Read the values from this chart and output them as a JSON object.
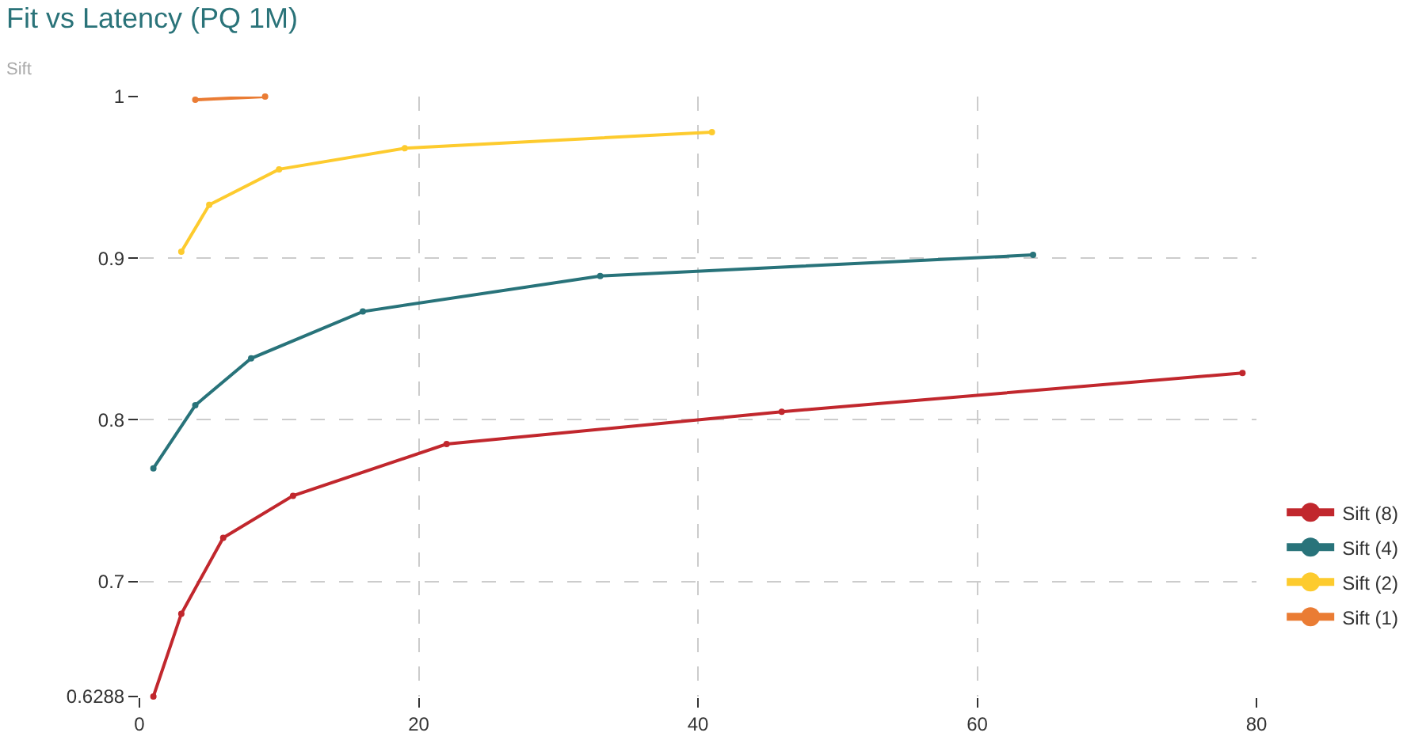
{
  "chart_data": {
    "type": "line",
    "title": "Fit vs Latency (PQ 1M)",
    "subtitle": "Sift",
    "xlim": [
      0,
      80
    ],
    "xticks": [
      0,
      20,
      40,
      60,
      80
    ],
    "ylim": [
      0.6288,
      1
    ],
    "yticks": [
      0.6288,
      0.7,
      0.8,
      0.9,
      1
    ],
    "grid": true,
    "legend": "right",
    "marker": "circle",
    "line_style": "solid",
    "series": [
      {
        "name": "Sift (8)",
        "color": "#c1272d",
        "x": [
          1,
          3,
          6,
          11,
          22,
          46,
          79
        ],
        "values": [
          0.6288,
          0.68,
          0.727,
          0.753,
          0.785,
          0.805,
          0.829
        ]
      },
      {
        "name": "Sift (4)",
        "color": "#28737a",
        "x": [
          1,
          4,
          8,
          16,
          33,
          64
        ],
        "values": [
          0.77,
          0.809,
          0.838,
          0.867,
          0.889,
          0.902
        ]
      },
      {
        "name": "Sift (2)",
        "color": "#fdcb2e",
        "x": [
          3,
          5,
          10,
          19,
          41
        ],
        "values": [
          0.904,
          0.933,
          0.955,
          0.968,
          0.978
        ]
      },
      {
        "name": "Sift (1)",
        "color": "#ea7c34",
        "x": [
          4,
          9
        ],
        "values": [
          0.998,
          1.0
        ]
      }
    ]
  }
}
